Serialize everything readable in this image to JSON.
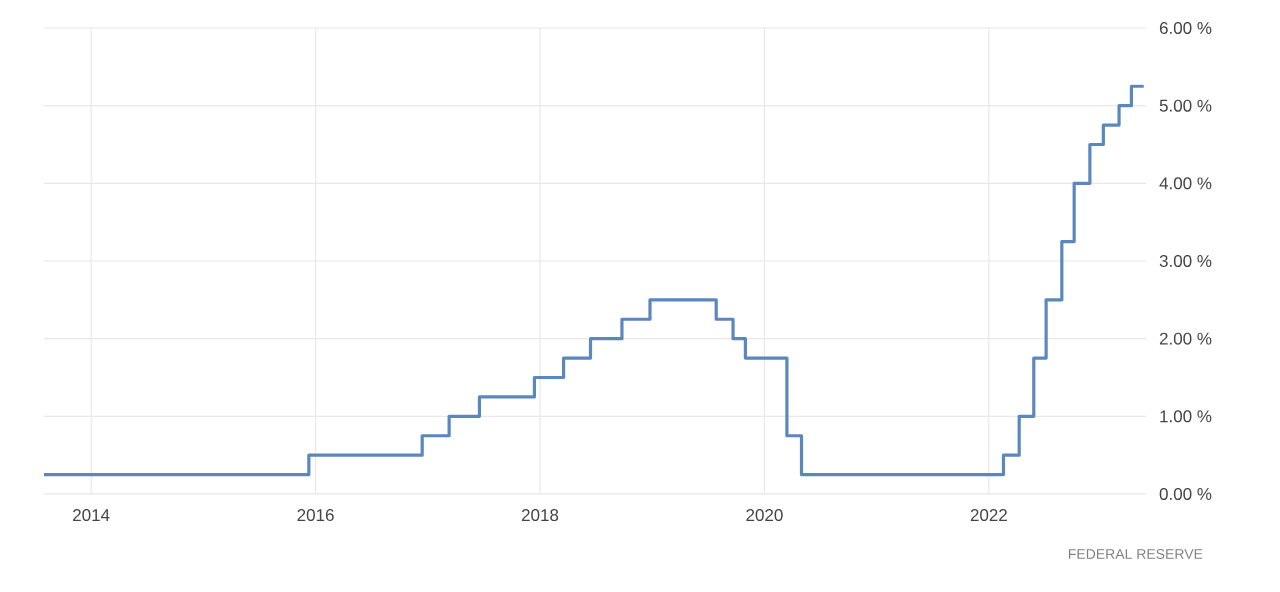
{
  "chart_data": {
    "type": "step",
    "x": [
      2013.58,
      2015.94,
      2016.95,
      2017.19,
      2017.46,
      2017.95,
      2018.21,
      2018.45,
      2018.73,
      2018.98,
      2019.57,
      2019.72,
      2019.83,
      2020.2,
      2020.33,
      2022.13,
      2022.27,
      2022.4,
      2022.51,
      2022.65,
      2022.76,
      2022.9,
      2023.02,
      2023.16,
      2023.27,
      2023.38
    ],
    "values": [
      0.25,
      0.5,
      0.75,
      1.0,
      1.25,
      1.5,
      1.75,
      2.0,
      2.25,
      2.5,
      2.25,
      2.0,
      1.75,
      0.75,
      0.25,
      0.5,
      1.0,
      1.75,
      2.5,
      3.25,
      4.0,
      4.5,
      4.75,
      5.0,
      5.25,
      5.25
    ],
    "color": "#5b87bf",
    "xlim": [
      2013.58,
      2023.4
    ],
    "ylim": [
      0,
      6
    ],
    "xticks": [
      2014,
      2016,
      2018,
      2020,
      2022
    ],
    "yticks": [
      {
        "value": 0,
        "label": "0.00 %"
      },
      {
        "value": 1,
        "label": "1.00 %"
      },
      {
        "value": 2,
        "label": "2.00 %"
      },
      {
        "value": 3,
        "label": "3.00 %"
      },
      {
        "value": 4,
        "label": "4.00 %"
      },
      {
        "value": 5,
        "label": "5.00 %"
      },
      {
        "value": 6,
        "label": "6.00 %"
      }
    ],
    "grid": true,
    "annotations": [
      "FEDERAL RESERVE"
    ]
  }
}
